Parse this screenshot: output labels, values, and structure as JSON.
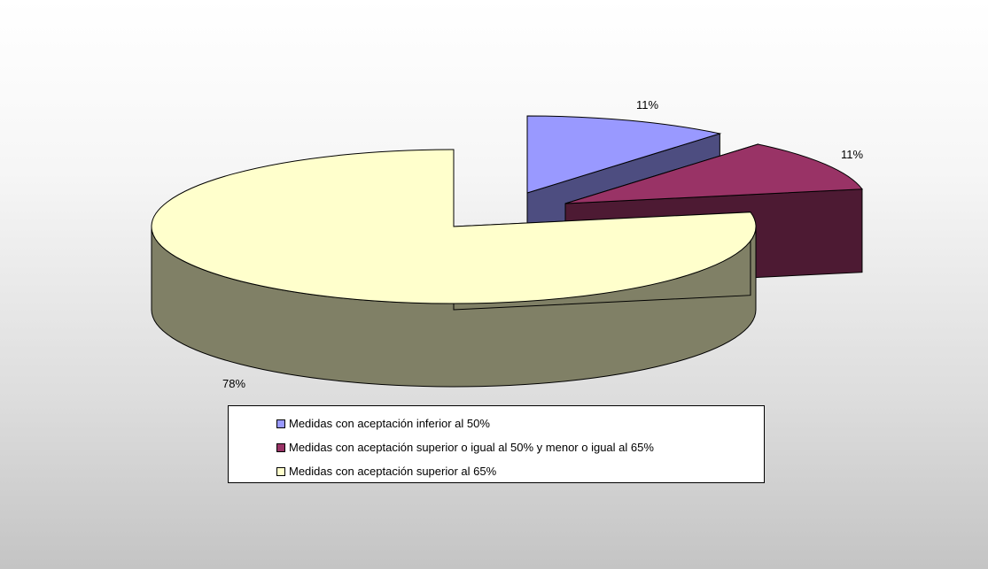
{
  "chart_data": {
    "type": "pie",
    "style": "3d-exploded",
    "slices": [
      {
        "label": "Medidas con aceptación inferior al 50%",
        "value": 11,
        "data_label": "11%",
        "color": "#9999ff",
        "side_color": "#4d4d80"
      },
      {
        "label": "Medidas con aceptación superior o igual al 50% y menor o igual al 65%",
        "value": 11,
        "data_label": "11%",
        "color": "#993366",
        "side_color": "#4d1a33"
      },
      {
        "label": "Medidas con aceptación superior al 65%",
        "value": 78,
        "data_label": "78%",
        "color": "#ffffcc",
        "side_color": "#808066"
      }
    ],
    "legend_position": "bottom"
  }
}
